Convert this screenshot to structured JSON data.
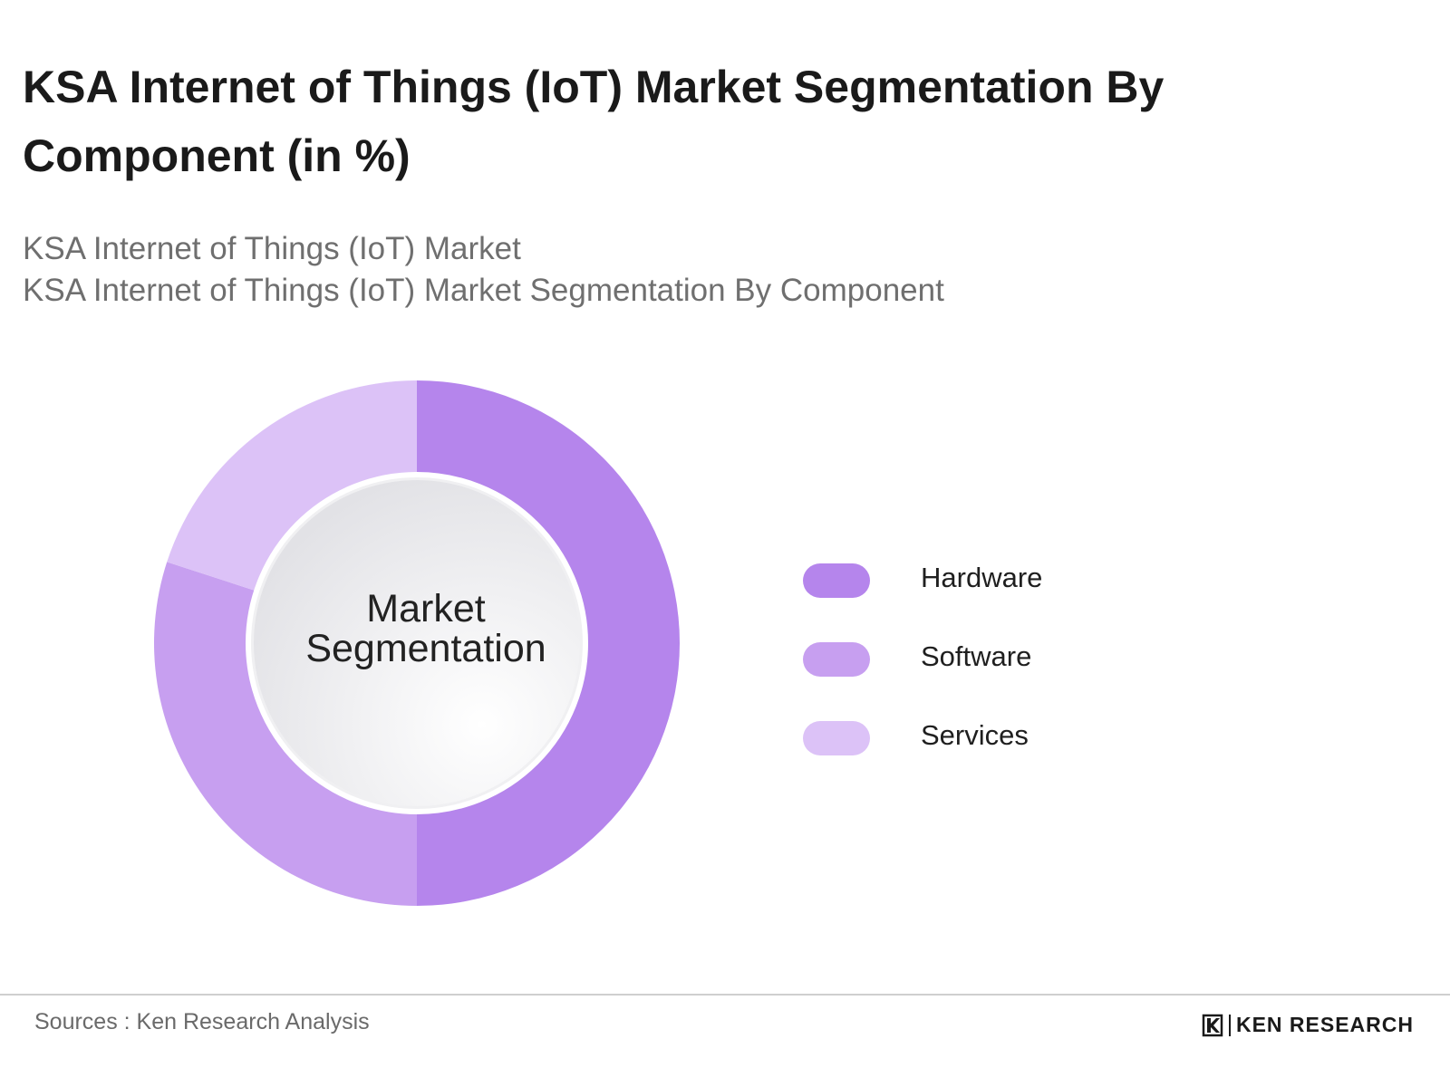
{
  "header": {
    "title": "KSA Internet of Things (IoT) Market Segmentation By Component (in %)",
    "subtitle_lines": [
      "KSA Internet of Things (IoT) Market",
      "KSA Internet of Things (IoT) Market Segmentation By Component"
    ]
  },
  "chart_data": {
    "type": "pie",
    "variant": "donut",
    "center_label": "Market Segmentation",
    "legend_position": "right",
    "categories": [
      "Hardware",
      "Software",
      "Services"
    ],
    "values": [
      50,
      30,
      20
    ],
    "colors": [
      "#b585ec",
      "#c79ff0",
      "#dcc2f7"
    ]
  },
  "footer": {
    "source": "Sources : Ken Research Analysis",
    "brand": "KEN RESEARCH"
  }
}
